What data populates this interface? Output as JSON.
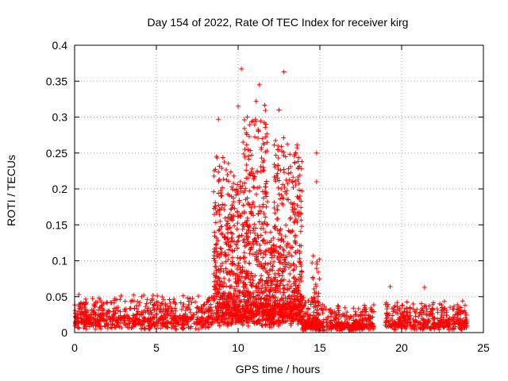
{
  "chart_data": {
    "type": "scatter",
    "title": "Day 154 of 2022, Rate Of TEC Index for receiver kirg",
    "xlabel": "GPS time / hours",
    "ylabel": "ROTI / TECUs",
    "xlim": [
      0,
      25
    ],
    "ylim": [
      0,
      0.4
    ],
    "grid": true,
    "marker": "+",
    "series_color": "#ff0000",
    "x_ticks": [
      0,
      5,
      10,
      15,
      20,
      25
    ],
    "x_tick_labels": [
      "0",
      "5",
      "10",
      "15",
      "20",
      "25"
    ],
    "y_ticks": [
      0,
      0.05,
      0.1,
      0.15,
      0.2,
      0.25,
      0.3,
      0.35,
      0.4
    ],
    "y_tick_labels": [
      "0",
      "0.05",
      "0.1",
      "0.15",
      "0.2",
      "0.25",
      "0.3",
      "0.35",
      "0.4"
    ],
    "data_description": "Dense ROTI scatter sampled over 24 h; background ~0.005-0.03 TECU/min with enhancement between ~8.5 h and ~14 h reaching ~0.37, short burst near 14.5-15 h up to ~0.25, minor spikes 19-24 h up to ~0.065",
    "peaks": [
      {
        "x": 10.2,
        "y": 0.367
      },
      {
        "x": 11.3,
        "y": 0.345
      },
      {
        "x": 12.8,
        "y": 0.363
      },
      {
        "x": 10.0,
        "y": 0.315
      },
      {
        "x": 11.1,
        "y": 0.322
      },
      {
        "x": 12.5,
        "y": 0.31
      },
      {
        "x": 8.8,
        "y": 0.297
      },
      {
        "x": 11.7,
        "y": 0.29
      },
      {
        "x": 14.8,
        "y": 0.25
      },
      {
        "x": 14.8,
        "y": 0.21
      },
      {
        "x": 19.3,
        "y": 0.064
      },
      {
        "x": 21.4,
        "y": 0.063
      },
      {
        "x": 1.5,
        "y": 0.048
      },
      {
        "x": 4.1,
        "y": 0.05
      },
      {
        "x": 4.8,
        "y": 0.052
      }
    ],
    "segments": [
      {
        "x0": 0.0,
        "x1": 8.5,
        "base": 0.015,
        "spread": 0.035,
        "n": 700
      },
      {
        "x0": 8.5,
        "x1": 9.6,
        "base": 0.03,
        "spread": 0.22,
        "n": 320
      },
      {
        "x0": 9.6,
        "x1": 10.3,
        "base": 0.02,
        "spread": 0.2,
        "n": 200
      },
      {
        "x0": 10.3,
        "x1": 11.8,
        "base": 0.03,
        "spread": 0.28,
        "n": 500
      },
      {
        "x0": 11.8,
        "x1": 12.2,
        "base": 0.02,
        "spread": 0.12,
        "n": 120
      },
      {
        "x0": 12.2,
        "x1": 13.9,
        "base": 0.03,
        "spread": 0.24,
        "n": 520
      },
      {
        "x0": 13.9,
        "x1": 14.5,
        "base": 0.01,
        "spread": 0.04,
        "n": 80
      },
      {
        "x0": 14.5,
        "x1": 15.0,
        "base": 0.01,
        "spread": 0.1,
        "n": 100
      },
      {
        "x0": 15.0,
        "x1": 18.3,
        "base": 0.008,
        "spread": 0.03,
        "n": 300
      },
      {
        "x0": 19.0,
        "x1": 24.0,
        "base": 0.012,
        "spread": 0.03,
        "n": 420
      }
    ]
  }
}
